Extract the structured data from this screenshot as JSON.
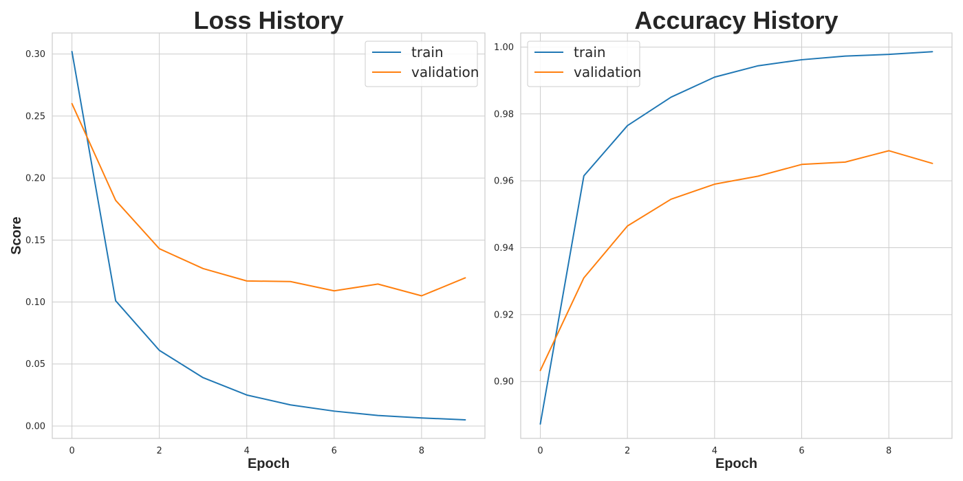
{
  "chart_data": [
    {
      "type": "line",
      "title": "Loss History",
      "xlabel": "Epoch",
      "ylabel": "Score",
      "x": [
        0,
        1,
        2,
        3,
        4,
        5,
        6,
        7,
        8,
        9
      ],
      "xlim": [
        -0.45,
        9.45
      ],
      "ylim": [
        -0.01,
        0.317
      ],
      "xticks": [
        0,
        2,
        4,
        6,
        8
      ],
      "yticks": [
        0.0,
        0.05,
        0.1,
        0.15,
        0.2,
        0.25,
        0.3
      ],
      "ytick_labels": [
        "0.00",
        "0.05",
        "0.10",
        "0.15",
        "0.20",
        "0.25",
        "0.30"
      ],
      "grid": true,
      "legend_position": "top-right",
      "series": [
        {
          "name": "train",
          "color": "#1f77b4",
          "values": [
            0.302,
            0.101,
            0.061,
            0.039,
            0.025,
            0.017,
            0.012,
            0.0085,
            0.0065,
            0.005
          ]
        },
        {
          "name": "validation",
          "color": "#ff7f0e",
          "values": [
            0.26,
            0.182,
            0.143,
            0.127,
            0.117,
            0.1165,
            0.109,
            0.1145,
            0.105,
            0.1195
          ]
        }
      ]
    },
    {
      "type": "line",
      "title": "Accuracy History",
      "xlabel": "Epoch",
      "ylabel": "",
      "x": [
        0,
        1,
        2,
        3,
        4,
        5,
        6,
        7,
        8,
        9
      ],
      "xlim": [
        -0.45,
        9.45
      ],
      "ylim": [
        0.883,
        1.0042
      ],
      "xticks": [
        0,
        2,
        4,
        6,
        8
      ],
      "yticks": [
        0.9,
        0.92,
        0.94,
        0.96,
        0.98,
        1.0
      ],
      "ytick_labels": [
        "0.90",
        "0.92",
        "0.94",
        "0.96",
        "0.98",
        "1.00"
      ],
      "grid": true,
      "legend_position": "top-left",
      "series": [
        {
          "name": "train",
          "color": "#1f77b4",
          "values": [
            0.8873,
            0.9615,
            0.9765,
            0.985,
            0.991,
            0.9944,
            0.9962,
            0.9973,
            0.9978,
            0.9986
          ]
        },
        {
          "name": "validation",
          "color": "#ff7f0e",
          "values": [
            0.9033,
            0.931,
            0.9465,
            0.9545,
            0.959,
            0.9614,
            0.9649,
            0.9656,
            0.969,
            0.9652
          ]
        }
      ]
    }
  ]
}
